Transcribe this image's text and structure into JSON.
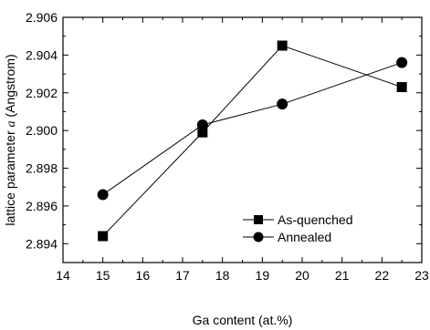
{
  "chart_data": {
    "type": "line",
    "xlabel": "Ga content (at.%)",
    "ylabel": "lattice parameter a (Angstrom)",
    "ylabel_prefix": "lattice parameter ",
    "ylabel_symbol": "a",
    "ylabel_suffix": " (Angstrom)",
    "xlim": [
      14,
      23
    ],
    "ylim": [
      2.893,
      2.906
    ],
    "xticks": [
      14,
      15,
      16,
      17,
      18,
      19,
      20,
      21,
      22,
      23
    ],
    "yticks": [
      2.894,
      2.896,
      2.898,
      2.9,
      2.902,
      2.904,
      2.906
    ],
    "ytick_labels": [
      "2.894",
      "2.896",
      "2.898",
      "2.900",
      "2.902",
      "2.904",
      "2.906"
    ],
    "grid": false,
    "legend_position": "lower-right",
    "series": [
      {
        "name": "As-quenched",
        "marker": "square",
        "x": [
          15,
          17.5,
          19.5,
          22.5
        ],
        "y": [
          2.8944,
          2.8999,
          2.9045,
          2.9023
        ]
      },
      {
        "name": "Annealed",
        "marker": "circle",
        "x": [
          15,
          17.5,
          19.5,
          22.5
        ],
        "y": [
          2.8966,
          2.9003,
          2.9014,
          2.9036
        ]
      }
    ]
  }
}
